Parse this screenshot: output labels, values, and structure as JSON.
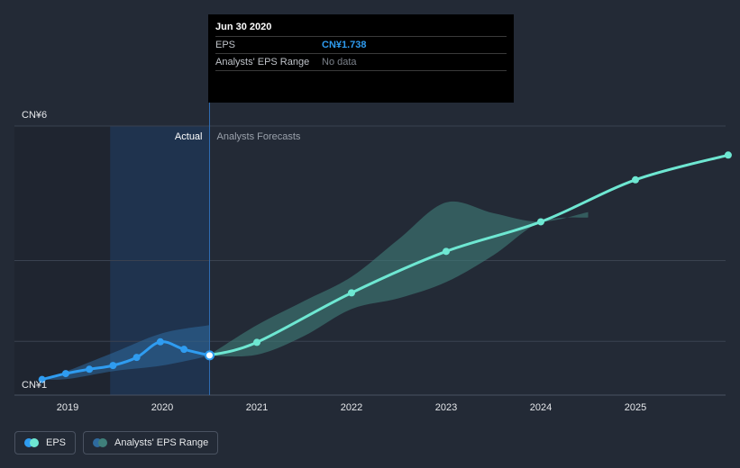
{
  "colors": {
    "background": "#232a36",
    "eps_line": "#2f9cf0",
    "forecast_line": "#6ee7d2",
    "range_fill": "#3f7f7a",
    "actual_region": "#1d3a63",
    "grid": "#3a4250"
  },
  "tooltip": {
    "date": "Jun 30 2020",
    "eps_label": "EPS",
    "eps_value": "CN¥1.738",
    "range_label": "Analysts' EPS Range",
    "range_value": "No data"
  },
  "legend": {
    "eps_label": "EPS",
    "range_label": "Analysts' EPS Range"
  },
  "chart_data": {
    "type": "line",
    "y_tick_labels": [
      "CN¥6",
      "CN¥1"
    ],
    "ylim": [
      1,
      6
    ],
    "xlim": [
      2018.6,
      2025.98
    ],
    "x_tick_labels": [
      "2019",
      "2020",
      "2021",
      "2022",
      "2023",
      "2024",
      "2025"
    ],
    "x_ticks": [
      2019,
      2020,
      2021,
      2022,
      2023,
      2024,
      2025
    ],
    "grid": "horizontal",
    "region_labels": {
      "actual": "Actual",
      "forecast": "Analysts Forecasts"
    },
    "divider_x": 2020.5,
    "series": [
      {
        "role": "actual",
        "x": [
          2018.73,
          2018.98,
          2019.23,
          2019.48,
          2019.73,
          2019.98,
          2020.23,
          2020.5
        ],
        "y": [
          1.29,
          1.4,
          1.48,
          1.55,
          1.7,
          1.99,
          1.85,
          1.738
        ]
      },
      {
        "role": "forecast",
        "x": [
          2020.5,
          2021.0,
          2022.0,
          2023.0,
          2024.0,
          2025.0,
          2025.98
        ],
        "y": [
          1.738,
          1.98,
          2.9,
          3.67,
          4.22,
          5.0,
          5.46
        ]
      }
    ],
    "range_band": {
      "x": [
        2020.5,
        2021.0,
        2021.5,
        2022.0,
        2022.5,
        2023.0,
        2023.5,
        2024.0,
        2024.5
      ],
      "upper": [
        1.75,
        2.3,
        2.75,
        3.2,
        3.9,
        4.58,
        4.38,
        4.22,
        4.4
      ],
      "lower": [
        1.73,
        1.75,
        2.1,
        2.6,
        2.8,
        3.1,
        3.6,
        4.22,
        4.3
      ]
    },
    "actual_band": {
      "x": [
        2018.73,
        2019.0,
        2019.5,
        2020.0,
        2020.5
      ],
      "upper": [
        1.29,
        1.45,
        1.8,
        2.15,
        2.3
      ],
      "lower": [
        1.29,
        1.3,
        1.45,
        1.55,
        1.73
      ]
    }
  }
}
